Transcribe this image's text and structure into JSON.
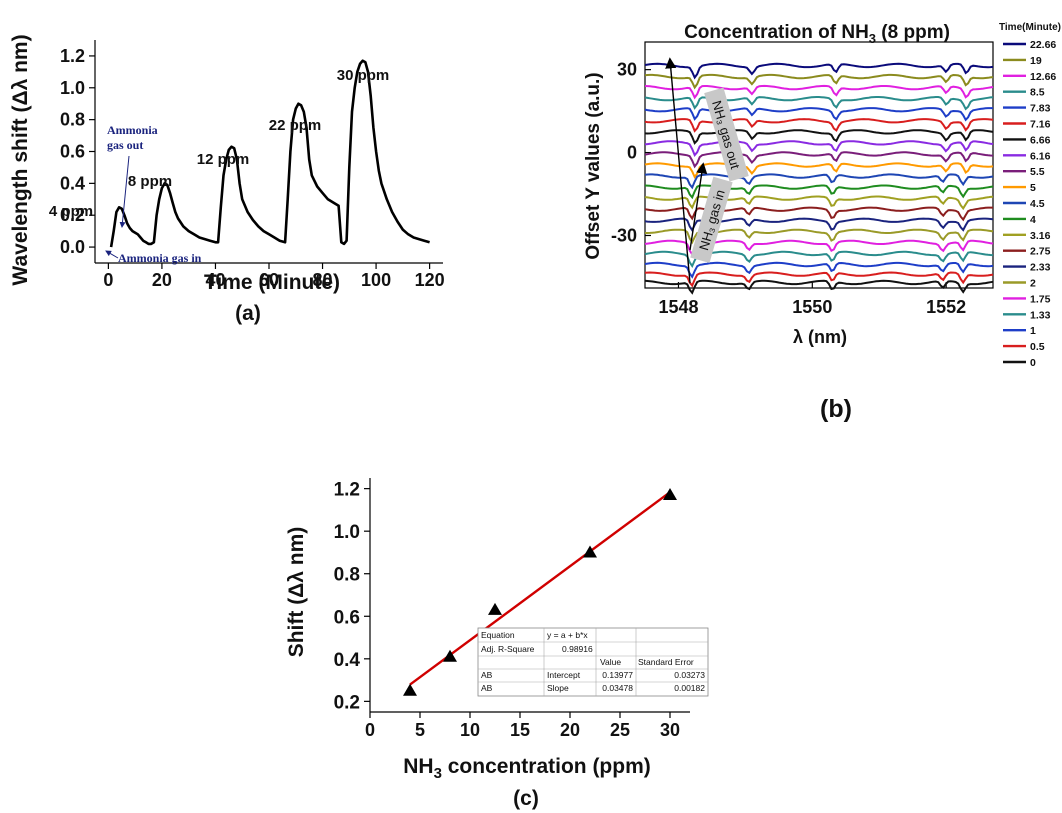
{
  "chart_data": [
    {
      "panel": "(a)",
      "type": "line",
      "xlabel": "Time (Minute)",
      "ylabel": "Wavelength shift (Δλ nm)",
      "xlim": [
        -5,
        125
      ],
      "ylim": [
        -0.1,
        1.3
      ],
      "xticks": [
        0,
        20,
        40,
        60,
        80,
        100,
        120
      ],
      "yticks": [
        0.0,
        0.2,
        0.4,
        0.6,
        0.8,
        1.0,
        1.2
      ],
      "series": [
        {
          "x": [
            1,
            2,
            3,
            4,
            5,
            6,
            7,
            8,
            9,
            10,
            11,
            12,
            13,
            14,
            15,
            16,
            17,
            18,
            19,
            20,
            21,
            22,
            23,
            24,
            25,
            26,
            28,
            30,
            32,
            34,
            36,
            38,
            40,
            41,
            42,
            43,
            44,
            45,
            46,
            47,
            48,
            49,
            50,
            52,
            54,
            56,
            58,
            60,
            62,
            64,
            66,
            67,
            68,
            69,
            70,
            71,
            72,
            73,
            74,
            75,
            76,
            78,
            80,
            82,
            84,
            86,
            87,
            88,
            89,
            90,
            91,
            92,
            93,
            94,
            95,
            96,
            97,
            98,
            99,
            100,
            101,
            102,
            104,
            106,
            108,
            110,
            112,
            114,
            116,
            118,
            120
          ],
          "y": [
            0.0,
            0.1,
            0.22,
            0.25,
            0.24,
            0.2,
            0.15,
            0.12,
            0.1,
            0.09,
            0.08,
            0.06,
            0.04,
            0.03,
            0.02,
            0.02,
            0.03,
            0.2,
            0.3,
            0.37,
            0.4,
            0.39,
            0.34,
            0.28,
            0.22,
            0.18,
            0.13,
            0.1,
            0.08,
            0.06,
            0.05,
            0.04,
            0.03,
            0.03,
            0.25,
            0.45,
            0.55,
            0.61,
            0.63,
            0.62,
            0.55,
            0.4,
            0.3,
            0.22,
            0.17,
            0.13,
            0.1,
            0.08,
            0.06,
            0.04,
            0.03,
            0.3,
            0.6,
            0.8,
            0.87,
            0.9,
            0.89,
            0.85,
            0.75,
            0.55,
            0.45,
            0.38,
            0.34,
            0.3,
            0.28,
            0.26,
            0.03,
            0.02,
            0.04,
            0.5,
            0.85,
            1.0,
            1.1,
            1.15,
            1.17,
            1.16,
            1.1,
            0.95,
            0.75,
            0.6,
            0.48,
            0.4,
            0.3,
            0.22,
            0.16,
            0.11,
            0.08,
            0.06,
            0.05,
            0.04,
            0.03
          ]
        }
      ],
      "annotations": [
        {
          "text": "4 ppm",
          "x": 3,
          "y": 0.35
        },
        {
          "text": "8 ppm",
          "x": 21,
          "y": 0.52
        },
        {
          "text": "12 ppm",
          "x": 45,
          "y": 0.74
        },
        {
          "text": "22 ppm",
          "x": 70,
          "y": 1.01
        },
        {
          "text": "30 ppm",
          "x": 93,
          "y": 1.28
        },
        {
          "text": "Ammonia",
          "x": 2,
          "y": 0.69
        },
        {
          "text": "gas out",
          "x": 2,
          "y": 0.6
        },
        {
          "text": "Ammonia gas in",
          "x": 4,
          "y": -0.08
        }
      ]
    },
    {
      "panel": "(b)",
      "type": "line",
      "title": "Concentration of NH₃ (8 ppm)",
      "xlabel": "λ (nm)",
      "ylabel": "Offset Y values (a.u.)",
      "xlim": [
        1547.5,
        1552.7
      ],
      "ylim": [
        -49,
        40
      ],
      "xticks": [
        1548,
        1550,
        1552
      ],
      "yticks": [
        -30,
        0,
        30
      ],
      "legend_title": "Time(Minute)",
      "legend_position": "right",
      "series_names": [
        "22.66",
        "19",
        "12.66",
        "8.5",
        "7.83",
        "7.16",
        "6.66",
        "6.16",
        "5.5",
        "5",
        "4.5",
        "4",
        "3.16",
        "2.75",
        "2.33",
        "2",
        "1.75",
        "1.33",
        "1",
        "0.5",
        "0"
      ],
      "series_colors": [
        "#0a0a7a",
        "#8b8b1e",
        "#e020e0",
        "#2a8c8c",
        "#1e3ec8",
        "#d81e1e",
        "#111111",
        "#8a2be2",
        "#7a1e7a",
        "#ff9a00",
        "#1e46b4",
        "#1f8c1f",
        "#a0a022",
        "#8b1e1e",
        "#1a237e",
        "#9a9a28",
        "#e020e0",
        "#2a8c8c",
        "#1e3ec8",
        "#d81e1e",
        "#111111"
      ],
      "offsets": [
        31.5,
        27.5,
        23.5,
        19.5,
        15.5,
        11.5,
        7.5,
        3.5,
        -0.5,
        -4.5,
        -8.5,
        -12.5,
        -16.5,
        -20.5,
        -24.5,
        -28.5,
        -32.5,
        -36.5,
        -40.5,
        -44,
        -47
      ],
      "dips_nm": [
        1548.2,
        1549.05,
        1550.3,
        1551.95,
        1552.25
      ],
      "annotations": [
        {
          "text": "NH₃ gas out",
          "x": 1548.8,
          "y": 20
        },
        {
          "text": "NH₃ gas in",
          "x": 1548.5,
          "y": -37
        }
      ]
    },
    {
      "panel": "(c)",
      "type": "scatter",
      "xlabel": "NH₃ concentration (ppm)",
      "ylabel": "Shift (Δλ nm)",
      "xlim": [
        0,
        32
      ],
      "ylim": [
        0.15,
        1.25
      ],
      "xticks": [
        0,
        5,
        10,
        15,
        20,
        25,
        30
      ],
      "yticks": [
        0.2,
        0.4,
        0.6,
        0.8,
        1.0,
        1.2
      ],
      "x": [
        4,
        8,
        12.5,
        22,
        30
      ],
      "y": [
        0.25,
        0.41,
        0.63,
        0.9,
        1.17
      ],
      "fit": {
        "intercept": 0.13977,
        "slope": 0.03478,
        "x_range": [
          4,
          30
        ],
        "color": "#d00000"
      }
    }
  ],
  "panels": {
    "a": {
      "label": "(a)",
      "xlabel": "Time (Minute)",
      "ylabel": "Wavelength shift (Δλ nm)",
      "ann_4": "4 ppm",
      "ann_8": "8 ppm",
      "ann_12": "12 ppm",
      "ann_22": "22 ppm",
      "ann_30": "30 ppm",
      "ann_gas_out_1": "Ammonia",
      "ann_gas_out_2": "gas out",
      "ann_gas_in": "Ammonia gas in"
    },
    "b": {
      "label": "(b)",
      "title_pre": "Concentration of NH",
      "title_sub": "3",
      "title_post": " (8 ppm)",
      "xlabel": "λ (nm)",
      "ylabel": "Offset Y values (a.u.)",
      "legend_title": "Time(Minute)",
      "arrow_out": "NH₃ gas out",
      "arrow_in": "NH₃ gas in"
    },
    "c": {
      "label": "(c)",
      "xlabel_pre": "NH",
      "xlabel_sub": "3",
      "xlabel_post": " concentration (ppm)",
      "ylabel": "Shift (Δλ nm)",
      "table": {
        "r1": [
          "Equation",
          "y = a + b*x",
          ""
        ],
        "r2": [
          "Adj. R-Square",
          "0.98916",
          "",
          ""
        ],
        "r3": [
          "",
          "",
          "Value",
          "Standard Error"
        ],
        "r4": [
          "AB",
          "Intercept",
          "0.13977",
          "0.03273"
        ],
        "r5": [
          "AB",
          "Slope",
          "0.03478",
          "0.00182"
        ]
      }
    }
  }
}
